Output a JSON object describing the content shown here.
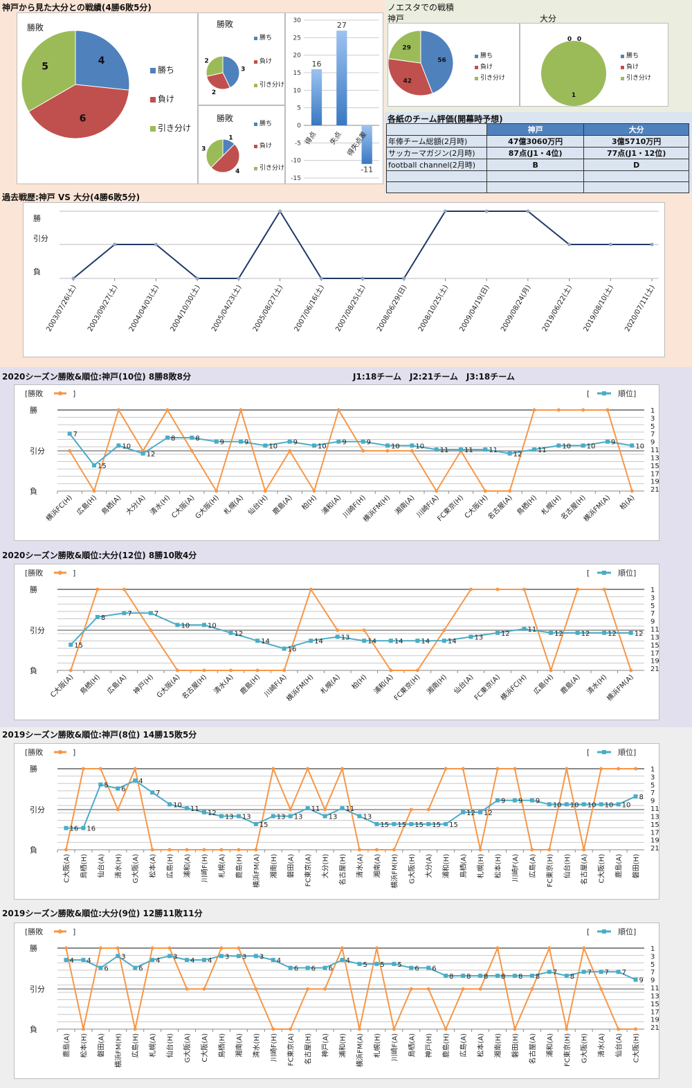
{
  "header": {
    "title": "神戸から見た大分との戦績(4勝6敗5分)",
    "noesta_title": "ノエスタでの戦積",
    "noesta_kobe": "神戸",
    "noesta_oita": "大分",
    "eval_title": "各紙のチーム評価(開幕時予想)",
    "history_title": "過去戦歴:神戸 VS 大分(4勝6敗5分)",
    "k20_title": "2020シーズン勝敗&順位:神戸(10位) 8勝8敗8分",
    "league_info": "J1:18チーム　J2:21チーム　J3:18チーム",
    "o20_title": "2020シーズン勝敗&順位:大分(12位) 8勝10敗4分",
    "k19_title": "2019シーズン勝敗&順位:神戸(8位) 14勝15敗5分",
    "o19_title": "2019シーズン勝敗&順位:大分(9位) 12勝11敗11分"
  },
  "legend": {
    "win": "勝ち",
    "loss": "負け",
    "draw": "引き分け",
    "result_label": "[勝敗",
    "rank_label": "順位]",
    "bracket_close": "]",
    "bracket_open": "["
  },
  "eval_table": {
    "headers": [
      "",
      "神戸",
      "大分"
    ],
    "rows": [
      [
        "年俸チーム総額(2月時)",
        "47億3060万円",
        "3億5710万円"
      ],
      [
        "サッカーマガジン(2月時)",
        "87点(J1・4位)",
        "77点(J1・12位)"
      ],
      [
        "football channel(2月時)",
        "B",
        "D"
      ],
      [
        "",
        "",
        ""
      ],
      [
        "",
        "",
        ""
      ]
    ]
  },
  "colors": {
    "win": "#4f81bd",
    "loss": "#c0504d",
    "draw": "#9bbb59",
    "result_line": "#f79646",
    "rank_line": "#4bacc6",
    "history_line": "#1f3864",
    "bar": "#4a86c8"
  },
  "chart_data": [
    {
      "id": "h2h_pie",
      "type": "pie",
      "title": "勝敗",
      "labels": [
        "勝ち",
        "負け",
        "引き分け"
      ],
      "values": [
        4,
        6,
        5
      ],
      "legend": "right"
    },
    {
      "id": "pie_small_1",
      "type": "pie",
      "title": "勝敗",
      "labels": [
        "勝ち",
        "負け",
        "引き分け"
      ],
      "values": [
        3,
        2,
        2
      ],
      "legend": "right"
    },
    {
      "id": "pie_small_2",
      "type": "pie",
      "title": "勝敗",
      "labels": [
        "勝ち",
        "負け",
        "引き分け"
      ],
      "values": [
        1,
        4,
        3
      ],
      "legend": "right"
    },
    {
      "id": "goals_bar",
      "type": "bar",
      "categories": [
        "得点",
        "失点",
        "得失点差"
      ],
      "values": [
        16,
        27,
        -11
      ],
      "ylim": [
        -15,
        30
      ],
      "yticks": [
        30,
        25,
        20,
        15,
        10,
        5,
        0,
        -5,
        -10,
        -15
      ]
    },
    {
      "id": "noesta_kobe",
      "type": "pie",
      "title": "神戸",
      "labels": [
        "勝ち",
        "負け",
        "引き分け"
      ],
      "values": [
        56,
        42,
        29
      ],
      "legend": "right"
    },
    {
      "id": "noesta_oita",
      "type": "pie",
      "title": "大分",
      "labels": [
        "勝ち",
        "負け",
        "引き分け"
      ],
      "values": [
        0,
        0,
        1
      ],
      "legend": "right"
    },
    {
      "id": "history",
      "type": "line",
      "title": "過去戦歴:神戸 VS 大分(4勝6敗5分)",
      "x": [
        "2003/07/26(土)",
        "2003/09/27(土)",
        "2004/04/03(土)",
        "2004/10/30(土)",
        "2005/04/23(土)",
        "2005/08/27(土)",
        "2007/06/16(土)",
        "2007/08/25(土)",
        "2008/06/29(日)",
        "2008/10/25(土)",
        "2009/04/19(日)",
        "2009/08/24(月)",
        "2019/06/22(土)",
        "2019/08/10(土)",
        "2020/07/11(土)"
      ],
      "results": [
        "L",
        "D",
        "D",
        "L",
        "L",
        "W",
        "L",
        "L",
        "L",
        "W",
        "W",
        "W",
        "D",
        "D",
        "D"
      ],
      "ytick_labels": [
        "勝",
        "引分",
        "負"
      ]
    },
    {
      "id": "kobe2020",
      "type": "line",
      "title": "2020シーズン勝敗&順位:神戸(10位) 8勝8敗8分",
      "x": [
        "横浜FC(H)",
        "広島(H)",
        "鳥栖(A)",
        "大分(A)",
        "清水(H)",
        "C大阪(A)",
        "G大阪(H)",
        "札幌(A)",
        "仙台(H)",
        "鹿島(A)",
        "柏(H)",
        "浦和(A)",
        "川崎F(H)",
        "横浜FM(H)",
        "湘南(A)",
        "川崎F(A)",
        "FC東京(H)",
        "C大阪(H)",
        "名古屋(A)",
        "鳥栖(H)",
        "札幌(H)",
        "名古屋(H)",
        "横浜FM(A)",
        "柏(A)"
      ],
      "series": [
        {
          "name": "勝敗",
          "values": [
            "D",
            "L",
            "W",
            "D",
            "W",
            "D",
            "L",
            "W",
            "L",
            "D",
            "L",
            "W",
            "D",
            "D",
            "D",
            "L",
            "D",
            "L",
            "L",
            "W",
            "W",
            "W",
            "W",
            "L"
          ]
        },
        {
          "name": "順位",
          "values": [
            7,
            15,
            10,
            12,
            8,
            8,
            9,
            9,
            10,
            9,
            10,
            9,
            9,
            10,
            10,
            11,
            11,
            11,
            12,
            11,
            10,
            10,
            9,
            10
          ]
        }
      ],
      "left_axis": [
        "勝",
        "引分",
        "負"
      ],
      "right_axis": [
        1,
        3,
        5,
        7,
        9,
        11,
        13,
        15,
        17,
        19,
        21
      ]
    },
    {
      "id": "oita2020",
      "type": "line",
      "title": "2020シーズン勝敗&順位:大分(12位) 8勝10敗4分",
      "x": [
        "C大阪(A)",
        "鳥栖(H)",
        "広島(A)",
        "神戸(H)",
        "G大阪(A)",
        "名古屋(H)",
        "清水(A)",
        "鹿島(H)",
        "川崎F(A)",
        "横浜FM(H)",
        "札幌(A)",
        "柏(H)",
        "浦和(A)",
        "FC東京(H)",
        "湘南(H)",
        "仙台(A)",
        "FC東京(A)",
        "横浜FC(H)",
        "広島(H)",
        "鹿島(A)",
        "清水(H)",
        "横浜FM(A)"
      ],
      "series": [
        {
          "name": "勝敗",
          "values": [
            "L",
            "W",
            "W",
            "D",
            "L",
            "L",
            "L",
            "L",
            "L",
            "W",
            "D",
            "D",
            "L",
            "L",
            "D",
            "W",
            "W",
            "W",
            "L",
            "W",
            "W",
            "L"
          ]
        },
        {
          "name": "順位",
          "values": [
            15,
            8,
            7,
            7,
            10,
            10,
            12,
            14,
            16,
            14,
            13,
            14,
            14,
            14,
            14,
            13,
            12,
            11,
            12,
            12,
            12,
            12
          ]
        }
      ],
      "left_axis": [
        "勝",
        "引分",
        "負"
      ],
      "right_axis": [
        1,
        3,
        5,
        7,
        9,
        11,
        13,
        15,
        17,
        19,
        21
      ]
    },
    {
      "id": "kobe2019",
      "type": "line",
      "title": "2019シーズン勝敗&順位:神戸(8位) 14勝15敗5分",
      "x": [
        "C大阪(A)",
        "鳥栖(H)",
        "仙台(A)",
        "清水(H)",
        "G大阪(A)",
        "松本(A)",
        "広島(H)",
        "浦和(A)",
        "川崎F(H)",
        "札幌(A)",
        "鹿島(H)",
        "横浜FM(A)",
        "湘南(H)",
        "磐田(A)",
        "FC東京(A)",
        "大分(H)",
        "名古屋(H)",
        "清水(A)",
        "湘南(A)",
        "横浜FM(H)",
        "G大阪(H)",
        "大分(A)",
        "浦和(H)",
        "鳥栖(A)",
        "札幌(H)",
        "松本(H)",
        "川崎F(A)",
        "広島(A)",
        "FC東京(H)",
        "仙台(H)",
        "名古屋(A)",
        "C大阪(H)",
        "鹿島(A)",
        "磐田(H)"
      ],
      "series": [
        {
          "name": "勝敗",
          "values": [
            "L",
            "W",
            "W",
            "D",
            "W",
            "L",
            "L",
            "L",
            "L",
            "L",
            "L",
            "L",
            "W",
            "D",
            "W",
            "D",
            "W",
            "L",
            "L",
            "L",
            "D",
            "D",
            "W",
            "W",
            "L",
            "W",
            "W",
            "L",
            "L",
            "W",
            "L",
            "W",
            "W",
            "W"
          ]
        },
        {
          "name": "順位",
          "values": [
            16,
            16,
            5,
            6,
            4,
            7,
            10,
            11,
            12,
            13,
            13,
            15,
            13,
            13,
            11,
            13,
            11,
            13,
            15,
            15,
            15,
            15,
            15,
            12,
            12,
            9,
            9,
            9,
            10,
            10,
            10,
            10,
            10,
            8
          ]
        }
      ],
      "left_axis": [
        "勝",
        "引分",
        "負"
      ],
      "right_axis": [
        1,
        3,
        5,
        7,
        9,
        11,
        13,
        15,
        17,
        19,
        21
      ]
    },
    {
      "id": "oita2019",
      "type": "line",
      "title": "2019シーズン勝敗&順位:大分(9位) 12勝11敗11分",
      "x": [
        "鹿島(A)",
        "松本(H)",
        "磐田(A)",
        "横浜FM(H)",
        "広島(H)",
        "札幌(A)",
        "仙台(H)",
        "G大阪(A)",
        "C大阪(A)",
        "鳥栖(H)",
        "湘南(A)",
        "清水(H)",
        "川崎F(H)",
        "FC東京(A)",
        "名古屋(H)",
        "神戸(A)",
        "浦和(H)",
        "横浜FM(A)",
        "札幌(H)",
        "川崎F(A)",
        "鳥栖(A)",
        "神戸(H)",
        "鹿島(H)",
        "広島(A)",
        "松本(A)",
        "湘南(H)",
        "磐田(H)",
        "名古屋(A)",
        "浦和(A)",
        "FC東京(H)",
        "G大阪(H)",
        "清水(A)",
        "仙台(A)",
        "C大阪(H)"
      ],
      "series": [
        {
          "name": "勝敗",
          "values": [
            "W",
            "L",
            "W",
            "W",
            "L",
            "W",
            "W",
            "D",
            "D",
            "W",
            "W",
            "D",
            "L",
            "L",
            "D",
            "D",
            "W",
            "L",
            "W",
            "L",
            "D",
            "D",
            "L",
            "D",
            "D",
            "W",
            "L",
            "D",
            "W",
            "L",
            "W",
            "D",
            "L",
            "L"
          ]
        },
        {
          "name": "順位",
          "values": [
            4,
            4,
            6,
            3,
            6,
            4,
            3,
            4,
            4,
            3,
            3,
            3,
            4,
            6,
            6,
            6,
            4,
            5,
            5,
            5,
            6,
            6,
            8,
            8,
            8,
            8,
            8,
            8,
            7,
            8,
            7,
            7,
            7,
            9
          ]
        }
      ],
      "left_axis": [
        "勝",
        "引分",
        "負"
      ],
      "right_axis": [
        1,
        3,
        5,
        7,
        9,
        11,
        13,
        15,
        17,
        19,
        21
      ]
    }
  ]
}
